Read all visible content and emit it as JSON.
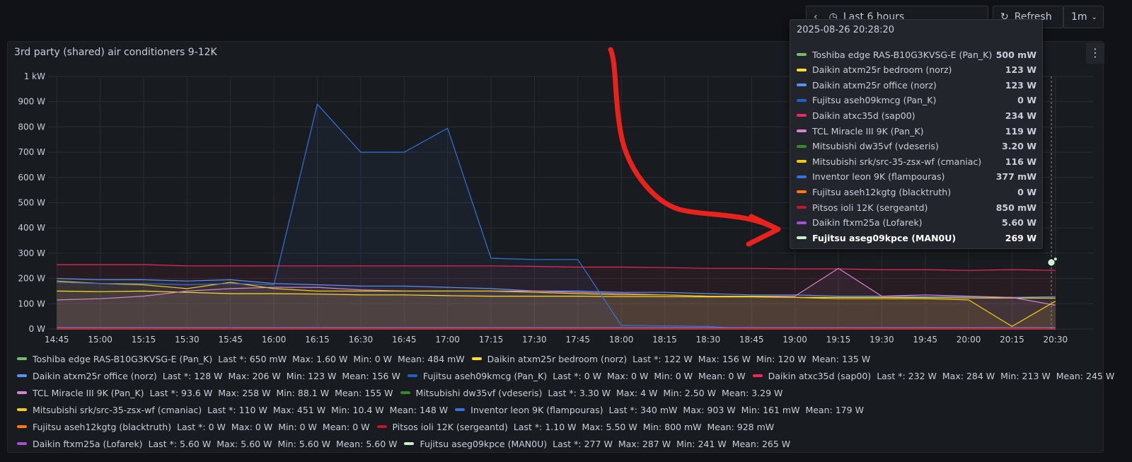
{
  "toolbar": {
    "time_range": "Last 6 hours",
    "refresh": "Refresh",
    "interval": "1m"
  },
  "chart_data": {
    "type": "line",
    "title": "3rd party (shared) air conditioners 9-12K",
    "x": [
      "14:45",
      "15:00",
      "15:15",
      "15:30",
      "15:45",
      "16:00",
      "16:15",
      "16:30",
      "16:45",
      "17:00",
      "17:15",
      "17:30",
      "17:45",
      "18:00",
      "18:15",
      "18:30",
      "18:45",
      "19:00",
      "19:15",
      "19:30",
      "19:45",
      "20:00",
      "20:15",
      "20:30"
    ],
    "xlim": [
      "14:42",
      "20:43"
    ],
    "xticks": [
      "14:45",
      "15:00",
      "15:15",
      "15:30",
      "15:45",
      "16:00",
      "16:15",
      "16:30",
      "16:45",
      "17:00",
      "17:15",
      "17:30",
      "17:45",
      "18:00",
      "18:15",
      "18:30",
      "18:45",
      "19:00",
      "19:15",
      "19:30",
      "19:45",
      "20:00",
      "20:15",
      "20:30"
    ],
    "ylim": [
      0,
      1000
    ],
    "yticks": [
      {
        "value": 0,
        "label": "0 W"
      },
      {
        "value": 100,
        "label": "100 W"
      },
      {
        "value": 200,
        "label": "200 W"
      },
      {
        "value": 300,
        "label": "300 W"
      },
      {
        "value": 400,
        "label": "400 W"
      },
      {
        "value": 500,
        "label": "500 W"
      },
      {
        "value": 600,
        "label": "600 W"
      },
      {
        "value": 700,
        "label": "700 W"
      },
      {
        "value": 800,
        "label": "800 W"
      },
      {
        "value": 900,
        "label": "900 W"
      },
      {
        "value": 1000,
        "label": "1 kW"
      }
    ],
    "grid": true,
    "series": [
      {
        "name": "Toshiba edge RAS-B10G3KVSG-E (Pan_K)",
        "color": "#73bf69",
        "values": [
          0.5,
          0.5,
          0.5,
          0.5,
          0.5,
          0.5,
          0.5,
          0.5,
          0.5,
          0.5,
          0.5,
          0.5,
          0.5,
          0.5,
          0.5,
          0.5,
          0.5,
          0.5,
          0.5,
          0.5,
          0.5,
          0.5,
          0.5,
          0.65
        ]
      },
      {
        "name": "Daikin atxm25r bedroom (norz)",
        "color": "#fade2a",
        "values": [
          150,
          148,
          150,
          145,
          140,
          140,
          138,
          135,
          135,
          132,
          130,
          130,
          130,
          128,
          128,
          127,
          127,
          125,
          125,
          125,
          124,
          123,
          123,
          122
        ]
      },
      {
        "name": "Daikin atxm25r office (norz)",
        "color": "#5794f2",
        "values": [
          200,
          195,
          195,
          190,
          195,
          180,
          175,
          170,
          170,
          165,
          160,
          150,
          150,
          145,
          145,
          140,
          135,
          135,
          130,
          130,
          128,
          128,
          125,
          128
        ]
      },
      {
        "name": "Fujitsu aseh09kmcg (Pan_K)",
        "color": "#1f60c4",
        "values": [
          0,
          0,
          0,
          0,
          0,
          0,
          0,
          0,
          0,
          0,
          0,
          0,
          0,
          0,
          0,
          0,
          0,
          0,
          0,
          0,
          0,
          0,
          0,
          0
        ]
      },
      {
        "name": "Daikin atxc35d (sap00)",
        "color": "#f2275a",
        "values": [
          255,
          255,
          255,
          250,
          250,
          250,
          250,
          250,
          250,
          250,
          250,
          248,
          245,
          245,
          243,
          240,
          240,
          238,
          238,
          235,
          235,
          232,
          235,
          232
        ]
      },
      {
        "name": "TCL Miracle III 9K (Pan_K)",
        "color": "#d683ce",
        "values": [
          115,
          120,
          130,
          150,
          160,
          165,
          165,
          155,
          150,
          150,
          150,
          150,
          145,
          140,
          135,
          130,
          130,
          130,
          240,
          130,
          135,
          130,
          125,
          94
        ]
      },
      {
        "name": "Mitsubishi dw35vf (vdeseris)",
        "color": "#37872d",
        "values": [
          3.3,
          3.3,
          3.3,
          3.3,
          3.3,
          3.3,
          3.3,
          3.3,
          3.3,
          3.3,
          3.3,
          3.3,
          3.3,
          3.3,
          3.3,
          3.3,
          3.3,
          3.3,
          3.3,
          3.3,
          3.3,
          3.3,
          3.3,
          3.3
        ]
      },
      {
        "name": "Mitsubishi srk/src-35-zsx-wf (cmaniac)",
        "color": "#f2cc0c",
        "values": [
          190,
          180,
          175,
          160,
          185,
          160,
          150,
          150,
          150,
          150,
          150,
          145,
          140,
          135,
          135,
          130,
          130,
          125,
          120,
          120,
          120,
          115,
          10.4,
          110
        ]
      },
      {
        "name": "Inventor leon 9K (flampouras)",
        "color": "#3274d9",
        "values": [
          185,
          180,
          180,
          175,
          180,
          175,
          890,
          700,
          700,
          795,
          280,
          275,
          275,
          15,
          12,
          10,
          0.3,
          0.3,
          0.3,
          0.3,
          0.3,
          0.3,
          0.3,
          0.34
        ]
      },
      {
        "name": "Fujitsu aseh12kgtg (blacktruth)",
        "color": "#ff780a",
        "values": [
          0,
          0,
          0,
          0,
          0,
          0,
          0,
          0,
          0,
          0,
          0,
          0,
          0,
          0,
          0,
          0,
          0,
          0,
          0,
          0,
          0,
          0,
          0,
          0
        ]
      },
      {
        "name": "Pitsos ioli 12K (sergeantd)",
        "color": "#c4162a",
        "values": [
          1.1,
          1.1,
          1.1,
          1.1,
          1.1,
          1.1,
          1.1,
          1.1,
          1.1,
          1.1,
          1.1,
          1.1,
          1.1,
          1.1,
          1.1,
          1.1,
          1.1,
          1.1,
          1.1,
          1.1,
          1.1,
          1.1,
          1.1,
          1.1
        ]
      },
      {
        "name": "Daikin ftxm25a (Lofarek)",
        "color": "#a352cc",
        "values": [
          5.6,
          5.6,
          5.6,
          5.6,
          5.6,
          5.6,
          5.6,
          5.6,
          5.6,
          5.6,
          5.6,
          5.6,
          5.6,
          5.6,
          5.6,
          5.6,
          5.6,
          5.6,
          5.6,
          5.6,
          5.6,
          5.6,
          5.6,
          5.6
        ]
      },
      {
        "name": "Fujitsu aseg09kpce (MAN0U)",
        "color": "#c8f2c2",
        "values": [
          null,
          null,
          null,
          null,
          null,
          null,
          null,
          null,
          null,
          null,
          null,
          null,
          null,
          null,
          null,
          null,
          null,
          null,
          null,
          null,
          null,
          null,
          null,
          277
        ]
      }
    ]
  },
  "legend_stat_labels": [
    "Last *:",
    "Max:",
    "Min:",
    "Mean:"
  ],
  "legend_stats": [
    [
      "650 mW",
      "1.60 W",
      "0 W",
      "484 mW"
    ],
    [
      "122 W",
      "156 W",
      "120 W",
      "135 W"
    ],
    [
      "128 W",
      "206 W",
      "123 W",
      "156 W"
    ],
    [
      "0 W",
      "0 W",
      "0 W",
      "0 W"
    ],
    [
      "232 W",
      "284 W",
      "213 W",
      "245 W"
    ],
    [
      "93.6 W",
      "258 W",
      "88.1 W",
      "155 W"
    ],
    [
      "3.30 W",
      "4 W",
      "2.50 W",
      "3.29 W"
    ],
    [
      "110 W",
      "451 W",
      "10.4 W",
      "148 W"
    ],
    [
      "340 mW",
      "903 W",
      "161 mW",
      "179 W"
    ],
    [
      "0 W",
      "0 W",
      "0 W",
      "0 W"
    ],
    [
      "1.10 W",
      "5.50 W",
      "800 mW",
      "928 mW"
    ],
    [
      "5.60 W",
      "5.60 W",
      "5.60 W",
      "5.60 W"
    ],
    [
      "277 W",
      "287 W",
      "241 W",
      "265 W"
    ]
  ],
  "tooltip": {
    "time": "2025-08-26 20:28:20",
    "values": [
      "500 mW",
      "123 W",
      "123 W",
      "0 W",
      "234 W",
      "119 W",
      "3.20 W",
      "116 W",
      "377 mW",
      "0 W",
      "850 mW",
      "5.60 W",
      "269 W"
    ]
  }
}
